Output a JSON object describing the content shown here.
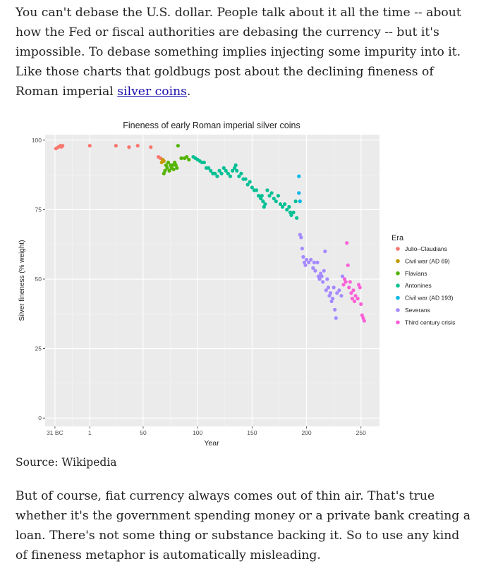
{
  "article": {
    "para1_text": "You can't debase the U.S. dollar. People talk about it all the time -- about how the Fed or fiscal authorities are debasing the currency -- but it's impossible. To debase something implies injecting some impurity into it. Like those charts that goldbugs post about the declining fineness of Roman imperial",
    "para1_link": "silver coins",
    "para1_end": ".",
    "source": "Source: Wikipedia",
    "para2": "But of course, fiat currency always comes out of thin air. That's true whether it's the government spending money or a private bank creating a loan. There's not some thing or substance backing it. So to use any kind of fineness metaphor is automatically misleading."
  },
  "chart_data": {
    "type": "scatter",
    "title": "Fineness of early Roman imperial silver coins",
    "xlabel": "Year",
    "ylabel": "Silver fineness (% weight)",
    "xlim": [
      -40,
      267
    ],
    "ylim": [
      -3,
      102
    ],
    "x_ticks": [
      -31,
      1,
      50,
      100,
      150,
      200,
      250
    ],
    "x_tick_labels": [
      "31 BC",
      "1",
      "50",
      "100",
      "150",
      "200",
      "250"
    ],
    "y_ticks": [
      0,
      25,
      50,
      75,
      100
    ],
    "y_tick_labels": [
      "0",
      "25",
      "50",
      "75",
      "100"
    ],
    "legend_title": "Era",
    "legend_position": "right",
    "series": [
      {
        "name": "Julio–Claudians",
        "color": "#F8766D",
        "points": [
          [
            -30,
            97
          ],
          [
            -28,
            97.5
          ],
          [
            -26,
            98
          ],
          [
            -24,
            98
          ],
          [
            -25,
            97.6
          ],
          [
            1,
            98
          ],
          [
            25,
            98
          ],
          [
            37,
            97.5
          ],
          [
            45,
            98
          ],
          [
            57,
            97.5
          ],
          [
            64,
            94
          ],
          [
            66,
            93.5
          ]
        ]
      },
      {
        "name": "Civil war (AD 69)",
        "color": "#C49A00",
        "points": [
          [
            67,
            92
          ],
          [
            68,
            93
          ],
          [
            69,
            92.5
          ]
        ]
      },
      {
        "name": "Flavians",
        "color": "#53B400",
        "points": [
          [
            69,
            88
          ],
          [
            70,
            89
          ],
          [
            71,
            91
          ],
          [
            72,
            90
          ],
          [
            73,
            92
          ],
          [
            74,
            89
          ],
          [
            75,
            91
          ],
          [
            76,
            90
          ],
          [
            77,
            91
          ],
          [
            78,
            89.5
          ],
          [
            79,
            92
          ],
          [
            80,
            91
          ],
          [
            81,
            90
          ],
          [
            82,
            98
          ],
          [
            85,
            93.5
          ],
          [
            88,
            93.5
          ],
          [
            90,
            94
          ],
          [
            92,
            93
          ]
        ]
      },
      {
        "name": "Antonines",
        "color": "#00C094",
        "points": [
          [
            96,
            94
          ],
          [
            98,
            93.5
          ],
          [
            100,
            93
          ],
          [
            102,
            92.5
          ],
          [
            104,
            92
          ],
          [
            106,
            92
          ],
          [
            108,
            90
          ],
          [
            110,
            90
          ],
          [
            112,
            89
          ],
          [
            114,
            88
          ],
          [
            116,
            88
          ],
          [
            118,
            87
          ],
          [
            120,
            89
          ],
          [
            122,
            88
          ],
          [
            124,
            90
          ],
          [
            126,
            89
          ],
          [
            128,
            88
          ],
          [
            130,
            87
          ],
          [
            132,
            89
          ],
          [
            134,
            90
          ],
          [
            135,
            91
          ],
          [
            136,
            89
          ],
          [
            138,
            87
          ],
          [
            140,
            88
          ],
          [
            142,
            86
          ],
          [
            144,
            86
          ],
          [
            146,
            84
          ],
          [
            148,
            85
          ],
          [
            150,
            83
          ],
          [
            152,
            82
          ],
          [
            154,
            82
          ],
          [
            156,
            80
          ],
          [
            158,
            79
          ],
          [
            159,
            80
          ],
          [
            160,
            78
          ],
          [
            161,
            76
          ],
          [
            162,
            77
          ],
          [
            164,
            82
          ],
          [
            166,
            80
          ],
          [
            168,
            81
          ],
          [
            170,
            79
          ],
          [
            172,
            78
          ],
          [
            174,
            80
          ],
          [
            176,
            77
          ],
          [
            178,
            76
          ],
          [
            180,
            77
          ],
          [
            182,
            75
          ],
          [
            184,
            76
          ],
          [
            185,
            74
          ],
          [
            186,
            73
          ],
          [
            188,
            74
          ],
          [
            190,
            78
          ],
          [
            191,
            72
          ]
        ]
      },
      {
        "name": "Civil war (AD 193)",
        "color": "#00B6EB",
        "points": [
          [
            193,
            87
          ],
          [
            193,
            81
          ],
          [
            194,
            78
          ]
        ]
      },
      {
        "name": "Severans",
        "color": "#A58AFF",
        "points": [
          [
            194,
            66
          ],
          [
            195,
            65
          ],
          [
            196,
            61
          ],
          [
            197,
            58
          ],
          [
            198,
            56
          ],
          [
            199,
            55
          ],
          [
            200,
            57
          ],
          [
            202,
            56
          ],
          [
            204,
            57
          ],
          [
            206,
            54
          ],
          [
            207,
            56
          ],
          [
            208,
            53
          ],
          [
            210,
            56
          ],
          [
            211,
            51
          ],
          [
            212,
            50
          ],
          [
            213,
            52
          ],
          [
            214,
            51
          ],
          [
            215,
            49
          ],
          [
            216,
            53
          ],
          [
            217,
            60
          ],
          [
            218,
            46
          ],
          [
            219,
            50
          ],
          [
            220,
            47
          ],
          [
            221,
            44
          ],
          [
            222,
            45
          ],
          [
            223,
            42
          ],
          [
            224,
            43
          ],
          [
            225,
            47
          ],
          [
            226,
            39
          ],
          [
            227,
            36
          ],
          [
            228,
            45
          ],
          [
            230,
            46
          ],
          [
            232,
            44
          ],
          [
            233,
            51
          ]
        ]
      },
      {
        "name": "Third century crisis",
        "color": "#FB61D7",
        "points": [
          [
            234,
            48
          ],
          [
            235,
            50
          ],
          [
            236,
            49
          ],
          [
            237,
            63
          ],
          [
            238,
            55
          ],
          [
            239,
            47
          ],
          [
            240,
            49
          ],
          [
            241,
            45
          ],
          [
            242,
            43
          ],
          [
            243,
            46
          ],
          [
            244,
            42
          ],
          [
            245,
            44
          ],
          [
            247,
            43
          ],
          [
            248,
            48
          ],
          [
            249,
            47
          ],
          [
            250,
            41
          ],
          [
            251,
            37
          ],
          [
            252,
            36
          ],
          [
            253,
            35
          ]
        ]
      }
    ]
  }
}
